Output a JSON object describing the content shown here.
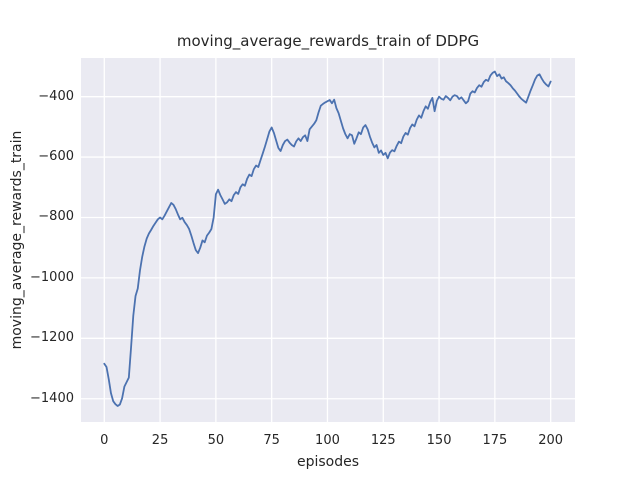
{
  "chart_data": {
    "type": "line",
    "title": "moving_average_rewards_train of DDPG",
    "xlabel": "episodes",
    "ylabel": "moving_average_rewards_train",
    "style": "seaborn-darkgrid",
    "grid": true,
    "legend": false,
    "x_start": 0,
    "x_step": 1,
    "xlim": [
      -10.43,
      210.9
    ],
    "ylim": [
      -1477,
      -272
    ],
    "xticks": [
      0,
      25,
      50,
      75,
      100,
      125,
      150,
      175,
      200
    ],
    "yticks": [
      -400,
      -600,
      -800,
      -1000,
      -1200,
      -1400
    ],
    "series": [
      {
        "name": "moving_average_rewards_train",
        "color": "#4c72b0",
        "values": [
          -1284,
          -1295,
          -1335,
          -1382,
          -1408,
          -1418,
          -1424,
          -1419,
          -1398,
          -1360,
          -1345,
          -1330,
          -1230,
          -1125,
          -1060,
          -1035,
          -975,
          -930,
          -896,
          -870,
          -853,
          -841,
          -828,
          -817,
          -806,
          -800,
          -806,
          -794,
          -780,
          -766,
          -752,
          -758,
          -772,
          -790,
          -806,
          -801,
          -815,
          -825,
          -838,
          -860,
          -885,
          -908,
          -918,
          -900,
          -876,
          -882,
          -860,
          -850,
          -838,
          -800,
          -723,
          -708,
          -726,
          -740,
          -755,
          -750,
          -740,
          -746,
          -726,
          -716,
          -722,
          -700,
          -690,
          -695,
          -672,
          -658,
          -663,
          -640,
          -628,
          -633,
          -610,
          -588,
          -565,
          -540,
          -515,
          -502,
          -520,
          -545,
          -570,
          -580,
          -560,
          -547,
          -542,
          -552,
          -560,
          -565,
          -548,
          -538,
          -547,
          -534,
          -528,
          -547,
          -508,
          -499,
          -490,
          -478,
          -452,
          -430,
          -424,
          -419,
          -415,
          -411,
          -422,
          -410,
          -438,
          -455,
          -480,
          -505,
          -524,
          -538,
          -524,
          -528,
          -556,
          -538,
          -518,
          -524,
          -502,
          -494,
          -508,
          -532,
          -552,
          -568,
          -560,
          -586,
          -578,
          -593,
          -586,
          -604,
          -585,
          -577,
          -581,
          -563,
          -549,
          -554,
          -532,
          -520,
          -526,
          -504,
          -492,
          -498,
          -476,
          -462,
          -470,
          -448,
          -432,
          -440,
          -418,
          -404,
          -448,
          -414,
          -400,
          -407,
          -410,
          -398,
          -404,
          -412,
          -400,
          -395,
          -398,
          -408,
          -402,
          -412,
          -422,
          -415,
          -390,
          -382,
          -386,
          -371,
          -362,
          -367,
          -352,
          -344,
          -348,
          -330,
          -321,
          -317,
          -332,
          -326,
          -340,
          -336,
          -349,
          -355,
          -362,
          -372,
          -380,
          -390,
          -400,
          -408,
          -414,
          -420,
          -400,
          -380,
          -362,
          -343,
          -330,
          -326,
          -340,
          -352,
          -360,
          -366,
          -350
        ]
      }
    ]
  },
  "colors": {
    "figure_bg": "#ffffff",
    "plot_bg": "#eaeaf2",
    "grid": "#ffffff",
    "line": "#4c72b0",
    "text": "#262626"
  }
}
